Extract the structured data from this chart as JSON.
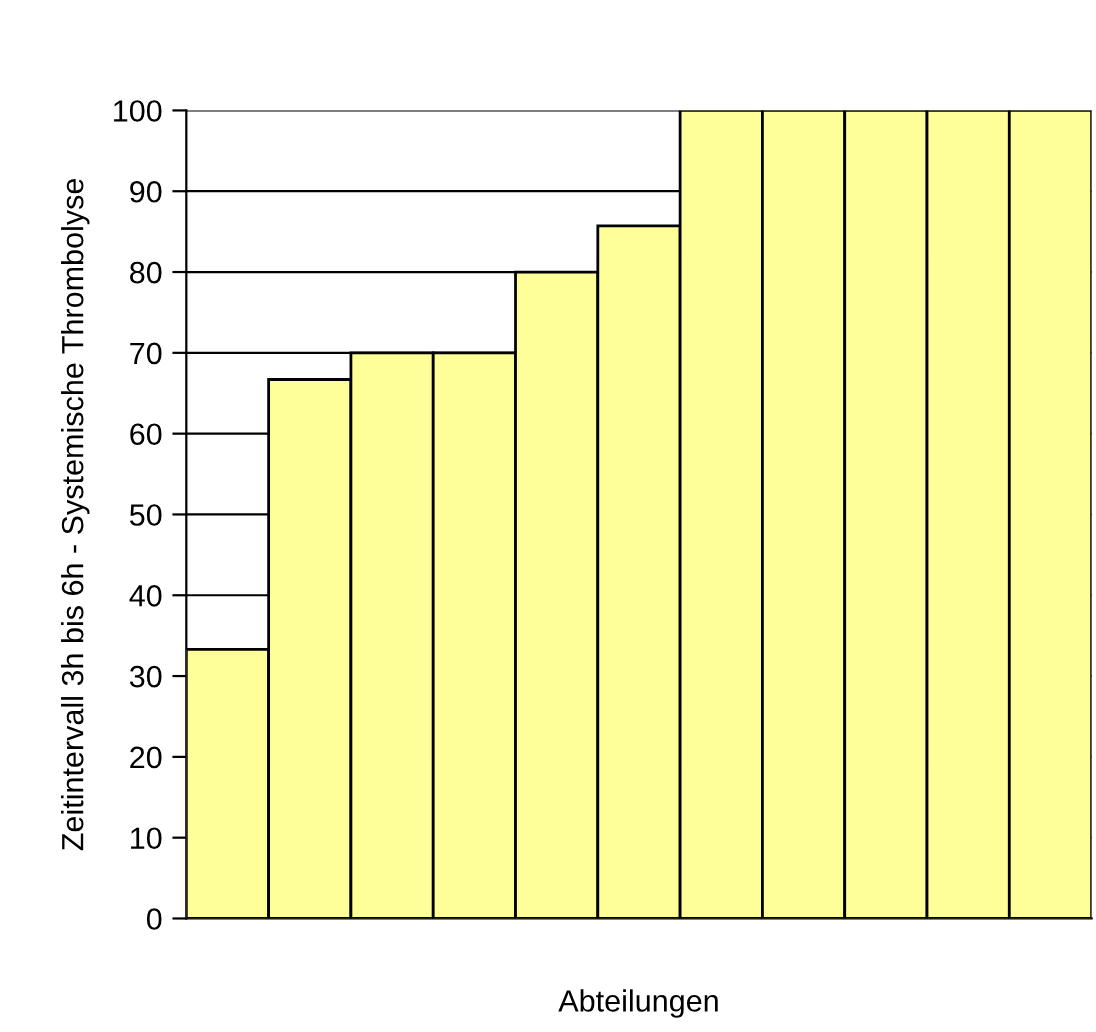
{
  "chart_data": {
    "type": "bar",
    "ylabel": "Zeitintervall 3h bis 6h - Systemische Thrombolyse",
    "xlabel": "Abteilungen",
    "categories": [
      null,
      null,
      null,
      null,
      null,
      null,
      null,
      null,
      null,
      null,
      null
    ],
    "values": [
      33.3,
      66.7,
      70,
      70,
      80,
      85.7,
      100,
      100,
      100,
      100,
      100
    ],
    "color": "#ffff99",
    "ylim": [
      0,
      100
    ],
    "yticks": [
      0,
      10,
      20,
      30,
      40,
      50,
      60,
      70,
      80,
      90,
      100
    ],
    "grid": "y"
  }
}
